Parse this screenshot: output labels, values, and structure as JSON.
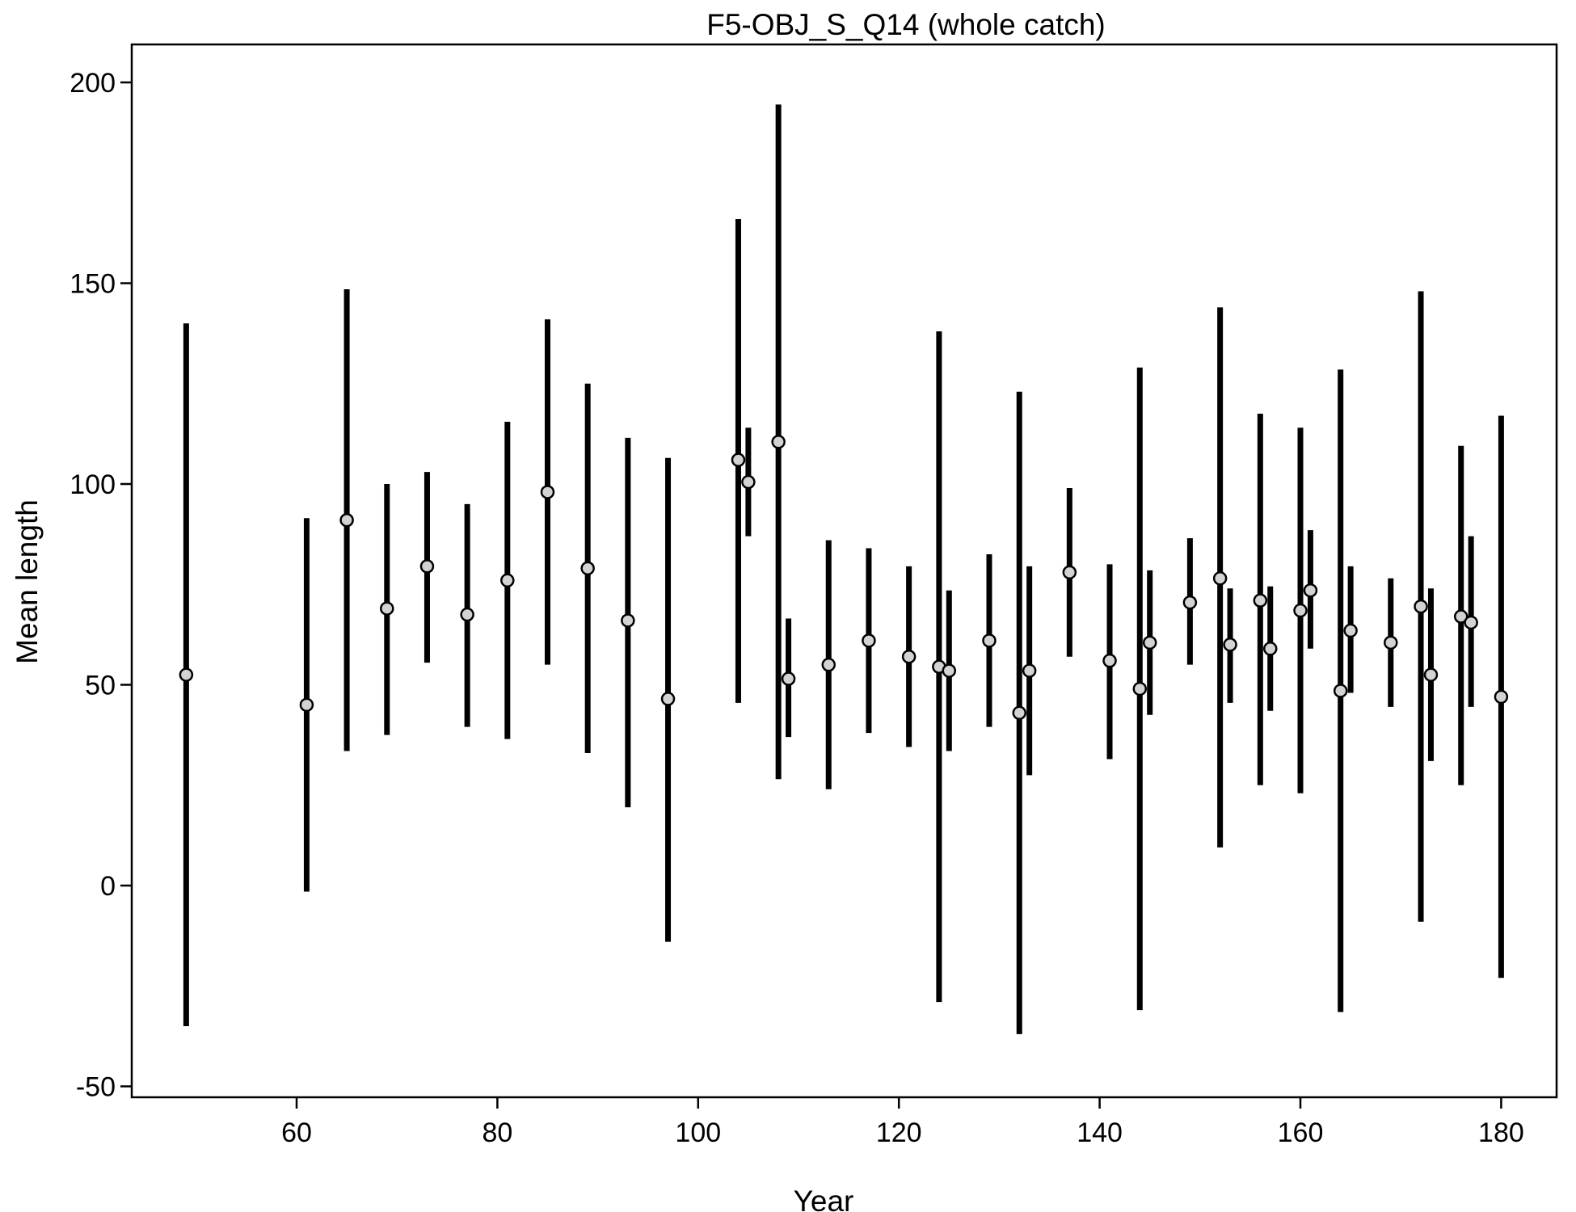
{
  "chart_data": {
    "type": "scatter",
    "title": "F5-OBJ_S_Q14 (whole catch)",
    "xlabel": "Year",
    "ylabel": "Mean length",
    "xlim": [
      44,
      186
    ],
    "ylim": [
      -52,
      209
    ],
    "xticks": [
      60,
      80,
      100,
      120,
      140,
      160,
      180
    ],
    "yticks": [
      -50,
      0,
      50,
      100,
      150,
      200
    ],
    "grid": false,
    "legend": "none",
    "marker_fill": "#d3d3d3",
    "marker_stroke": "#000000",
    "bar_color": "#000000",
    "points": [
      {
        "x": 49,
        "y": 52.5,
        "lo": -35,
        "hi": 140
      },
      {
        "x": 61,
        "y": 45,
        "lo": -1.5,
        "hi": 91.5
      },
      {
        "x": 65,
        "y": 91,
        "lo": 33.5,
        "hi": 148.5
      },
      {
        "x": 69,
        "y": 69,
        "lo": 37.5,
        "hi": 100
      },
      {
        "x": 73,
        "y": 79.5,
        "lo": 55.5,
        "hi": 103
      },
      {
        "x": 77,
        "y": 67.5,
        "lo": 39.5,
        "hi": 95
      },
      {
        "x": 81,
        "y": 76,
        "lo": 36.5,
        "hi": 115.5
      },
      {
        "x": 85,
        "y": 98,
        "lo": 55,
        "hi": 141
      },
      {
        "x": 89,
        "y": 79,
        "lo": 33,
        "hi": 125
      },
      {
        "x": 93,
        "y": 66,
        "lo": 19.5,
        "hi": 111.5
      },
      {
        "x": 97,
        "y": 46.5,
        "lo": -14,
        "hi": 106.5
      },
      {
        "x": 104,
        "y": 106,
        "lo": 45.5,
        "hi": 166
      },
      {
        "x": 105,
        "y": 100.5,
        "lo": 87,
        "hi": 114
      },
      {
        "x": 108,
        "y": 110.5,
        "lo": 26.5,
        "hi": 194.5
      },
      {
        "x": 109,
        "y": 51.5,
        "lo": 37,
        "hi": 66.5
      },
      {
        "x": 113,
        "y": 55,
        "lo": 24,
        "hi": 86
      },
      {
        "x": 117,
        "y": 61,
        "lo": 38,
        "hi": 84
      },
      {
        "x": 121,
        "y": 57,
        "lo": 34.5,
        "hi": 79.5
      },
      {
        "x": 124,
        "y": 54.5,
        "lo": -29,
        "hi": 138
      },
      {
        "x": 125,
        "y": 53.5,
        "lo": 33.5,
        "hi": 73.5
      },
      {
        "x": 129,
        "y": 61,
        "lo": 39.5,
        "hi": 82.5
      },
      {
        "x": 132,
        "y": 43,
        "lo": -37,
        "hi": 123
      },
      {
        "x": 133,
        "y": 53.5,
        "lo": 27.5,
        "hi": 79.5
      },
      {
        "x": 137,
        "y": 78,
        "lo": 57,
        "hi": 99
      },
      {
        "x": 141,
        "y": 56,
        "lo": 31.5,
        "hi": 80
      },
      {
        "x": 144,
        "y": 49,
        "lo": -31,
        "hi": 129
      },
      {
        "x": 145,
        "y": 60.5,
        "lo": 42.5,
        "hi": 78.5
      },
      {
        "x": 149,
        "y": 70.5,
        "lo": 55,
        "hi": 86.5
      },
      {
        "x": 152,
        "y": 76.5,
        "lo": 9.5,
        "hi": 144
      },
      {
        "x": 153,
        "y": 60,
        "lo": 45.5,
        "hi": 74
      },
      {
        "x": 156,
        "y": 71,
        "lo": 25,
        "hi": 117.5
      },
      {
        "x": 157,
        "y": 59,
        "lo": 43.5,
        "hi": 74.5
      },
      {
        "x": 160,
        "y": 68.5,
        "lo": 23,
        "hi": 114
      },
      {
        "x": 161,
        "y": 73.5,
        "lo": 59,
        "hi": 88.5
      },
      {
        "x": 164,
        "y": 48.5,
        "lo": -31.5,
        "hi": 128.5
      },
      {
        "x": 165,
        "y": 63.5,
        "lo": 48,
        "hi": 79.5
      },
      {
        "x": 169,
        "y": 60.5,
        "lo": 44.5,
        "hi": 76.5
      },
      {
        "x": 172,
        "y": 69.5,
        "lo": -9,
        "hi": 148
      },
      {
        "x": 173,
        "y": 52.5,
        "lo": 31,
        "hi": 74
      },
      {
        "x": 176,
        "y": 67,
        "lo": 25,
        "hi": 109.5
      },
      {
        "x": 177,
        "y": 65.5,
        "lo": 44.5,
        "hi": 87
      },
      {
        "x": 180,
        "y": 47,
        "lo": -23,
        "hi": 117
      }
    ]
  }
}
